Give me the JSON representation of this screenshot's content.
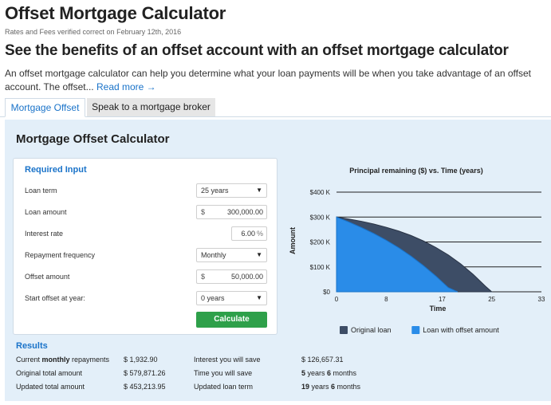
{
  "header": {
    "title": "Offset Mortgage Calculator",
    "verified": "Rates and Fees verified correct on February 12th, 2016",
    "headline": "See the benefits of an offset account with an offset mortgage calculator",
    "intro": "An offset mortgage calculator can help you determine what your loan payments will be when you take advantage of an offset account. The offset...",
    "read_more": "Read more →"
  },
  "tabs": [
    {
      "label": "Mortgage Offset",
      "active": true
    },
    {
      "label": "Speak to a mortgage broker",
      "active": false
    }
  ],
  "calculator": {
    "title": "Mortgage Offset Calculator",
    "inputs_heading": "Required Input",
    "loan_term": {
      "label": "Loan term",
      "value": "25 years"
    },
    "loan_amount": {
      "label": "Loan amount",
      "currency": "$",
      "value": "300,000.00"
    },
    "interest_rate": {
      "label": "Interest rate",
      "value": "6.00",
      "unit": "%"
    },
    "repayment_frequency": {
      "label": "Repayment frequency",
      "value": "Monthly"
    },
    "offset_amount": {
      "label": "Offset amount",
      "currency": "$",
      "value": "50,000.00"
    },
    "start_offset": {
      "label": "Start offset at year:",
      "value": "0 years"
    },
    "calculate_label": "Calculate"
  },
  "results": {
    "heading": "Results",
    "current_repayments": {
      "label_pre": "Current ",
      "label_bold": "monthly",
      "label_post": " repayments",
      "value": "$ 1,932.90"
    },
    "original_total": {
      "label": "Original total amount",
      "value": "$ 579,871.26"
    },
    "updated_total": {
      "label": "Updated total amount",
      "value": "$ 453,213.95"
    },
    "interest_save": {
      "label": "Interest you will save",
      "value": "$ 126,657.31"
    },
    "time_save": {
      "label": "Time you will save",
      "years": "5",
      "years_word": " years ",
      "months": "6",
      "months_word": " months"
    },
    "updated_term": {
      "label": "Updated loan term",
      "years": "19",
      "years_word": " years ",
      "months": "6",
      "months_word": " months"
    }
  },
  "colors": {
    "accent": "#1a73c9",
    "button": "#2ea04a",
    "original_loan": "#3d4d66",
    "offset_loan": "#2a8ce8"
  },
  "chart_data": {
    "type": "area",
    "title": "Principal remaining ($) vs. Time (years)",
    "xlabel": "Time",
    "ylabel": "Amount",
    "x_ticks": [
      "0",
      "8",
      "17",
      "25",
      "33"
    ],
    "y_ticks": [
      "$0",
      "$100 K",
      "$200 K",
      "$300 K",
      "$400 K"
    ],
    "xlim": [
      0,
      33
    ],
    "ylim": [
      0,
      400000
    ],
    "grid": "horizontal",
    "legend_position": "bottom",
    "series": [
      {
        "name": "Original loan",
        "color": "#3d4d66",
        "x": [
          0,
          2,
          4,
          6,
          8,
          10,
          12,
          14,
          16,
          18,
          20,
          22,
          24,
          25
        ],
        "y": [
          300000,
          292000,
          283000,
          272000,
          259000,
          244000,
          226000,
          204000,
          178000,
          148000,
          112000,
          70000,
          22000,
          0
        ]
      },
      {
        "name": "Loan with offset amount",
        "color": "#2a8ce8",
        "x": [
          0,
          2,
          4,
          6,
          8,
          10,
          12,
          14,
          16,
          18,
          19.5
        ],
        "y": [
          300000,
          280000,
          258000,
          234000,
          207000,
          177000,
          143000,
          105000,
          63000,
          17000,
          0
        ]
      }
    ]
  }
}
